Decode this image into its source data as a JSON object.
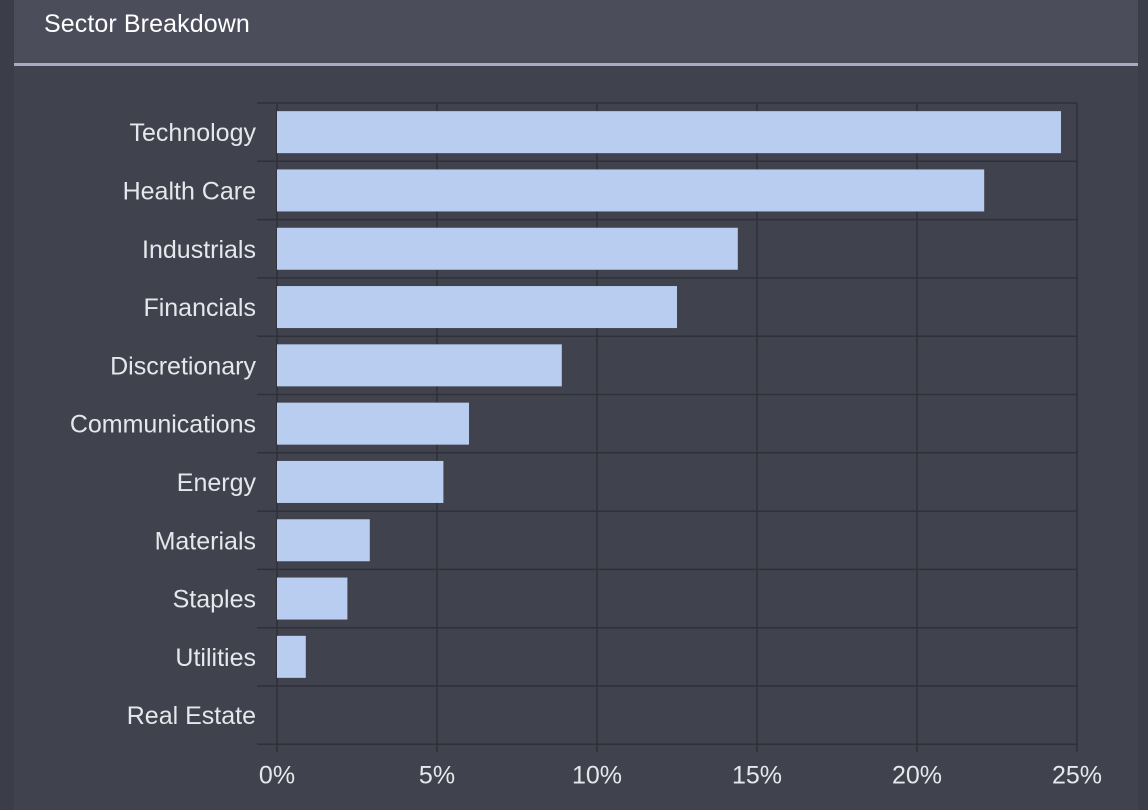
{
  "panel": {
    "title": "Sector Breakdown"
  },
  "colors": {
    "bar": "#b8cdef",
    "grid": "#2f3139",
    "plot_bg": "#40434d",
    "text": "#e6e7ec"
  },
  "chart_data": {
    "type": "bar",
    "orientation": "horizontal",
    "categories": [
      "Technology",
      "Health Care",
      "Industrials",
      "Financials",
      "Discretionary",
      "Communications",
      "Energy",
      "Materials",
      "Staples",
      "Utilities",
      "Real Estate"
    ],
    "values": [
      24.5,
      22.1,
      14.4,
      12.5,
      8.9,
      6.0,
      5.2,
      2.9,
      2.2,
      0.9,
      0.0
    ],
    "xlim": [
      0,
      25
    ],
    "xticks": [
      0,
      5,
      10,
      15,
      20,
      25
    ],
    "xtick_labels": [
      "0%",
      "5%",
      "10%",
      "15%",
      "20%",
      "25%"
    ],
    "grid": true
  }
}
